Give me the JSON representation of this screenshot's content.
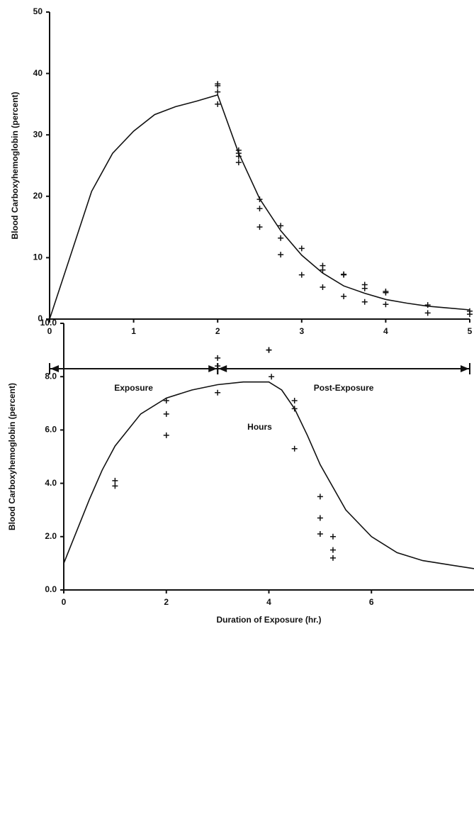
{
  "chart_data": [
    {
      "type": "line",
      "y_label": "Blood Carboxyhemoglobin (percent)",
      "x_label": "Hours",
      "xlim": [
        0,
        5
      ],
      "ylim": [
        0,
        50
      ],
      "xticks": [
        0,
        1,
        2,
        3,
        4,
        5
      ],
      "yticks": [
        0,
        10,
        20,
        30,
        40,
        50
      ],
      "spans": [
        {
          "label": "Exposure",
          "from": 0,
          "to": 2
        },
        {
          "label": "Post-Exposure",
          "from": 2,
          "to": 5
        }
      ],
      "series": [
        {
          "style": "line",
          "color": "#111111",
          "x": [
            0,
            0.25,
            0.5,
            0.75,
            1,
            1.25,
            1.5,
            1.75,
            2,
            2.25,
            2.5,
            2.75,
            3,
            3.25,
            3.5,
            3.75,
            4,
            4.25,
            4.5,
            4.75,
            5
          ],
          "values": [
            0,
            10.4,
            20.8,
            27,
            30.6,
            33.3,
            34.6,
            35.5,
            36.5,
            27,
            19.6,
            14.4,
            10.4,
            7.5,
            5.4,
            4.2,
            3.2,
            2.6,
            2.1,
            1.8,
            1.5
          ]
        },
        {
          "style": "scatter",
          "color": "#111111",
          "x": [
            2,
            2,
            2,
            2,
            2.25,
            2.25,
            2.25,
            2.25,
            2.5,
            2.5,
            2.5,
            2.75,
            2.75,
            2.75,
            3,
            3,
            3.25,
            3.25,
            3.25,
            3.5,
            3.5,
            3.5,
            3.75,
            3.75,
            3.75,
            4,
            4,
            4,
            4.5,
            4.5,
            5,
            5
          ],
          "values": [
            38.3,
            38,
            37,
            35,
            27.5,
            27,
            26.5,
            25.5,
            19.5,
            18,
            15,
            15.2,
            13.2,
            10.5,
            11.5,
            7.2,
            8.7,
            8,
            5.2,
            7.3,
            7.2,
            3.7,
            5.6,
            5,
            2.8,
            4.5,
            4.3,
            2.4,
            2.3,
            1,
            1.3,
            0.8
          ]
        }
      ]
    },
    {
      "type": "line",
      "y_label": "Blood Carboxyhemoglobin (percent)",
      "x_label": "Duration of Exposure (hr.)",
      "xlim": [
        0,
        8
      ],
      "ylim": [
        0,
        10
      ],
      "xticks": [
        0,
        2,
        4,
        6
      ],
      "yticks": [
        {
          "value": 0,
          "label": "0.0"
        },
        {
          "value": 2,
          "label": "2.0"
        },
        {
          "value": 4,
          "label": "4.0"
        },
        {
          "value": 6,
          "label": "6.0"
        },
        {
          "value": 8,
          "label": "8.0"
        },
        {
          "value": 10,
          "label": "10.0"
        }
      ],
      "series": [
        {
          "style": "line",
          "color": "#111111",
          "x": [
            0,
            0.25,
            0.5,
            0.75,
            1,
            1.5,
            2,
            2.5,
            3,
            3.5,
            4,
            4.25,
            4.5,
            4.75,
            5,
            5.5,
            6,
            6.5,
            7,
            7.5,
            8
          ],
          "values": [
            1.0,
            2.2,
            3.4,
            4.5,
            5.4,
            6.6,
            7.2,
            7.5,
            7.7,
            7.8,
            7.8,
            7.5,
            6.8,
            5.8,
            4.7,
            3.0,
            2.0,
            1.4,
            1.1,
            0.95,
            0.8
          ]
        },
        {
          "style": "scatter",
          "color": "#111111",
          "x": [
            1,
            1,
            2,
            2,
            2,
            3,
            3,
            3,
            4,
            4,
            4.05,
            4.5,
            4.5,
            4.5,
            5,
            5,
            5,
            5.25,
            5.25,
            5.25
          ],
          "values": [
            4.1,
            3.9,
            7.1,
            6.6,
            5.8,
            8.7,
            8.4,
            7.4,
            9.0,
            9.0,
            8.0,
            7.1,
            6.8,
            5.3,
            3.5,
            2.7,
            2.1,
            2.0,
            1.5,
            1.2
          ]
        }
      ]
    }
  ]
}
